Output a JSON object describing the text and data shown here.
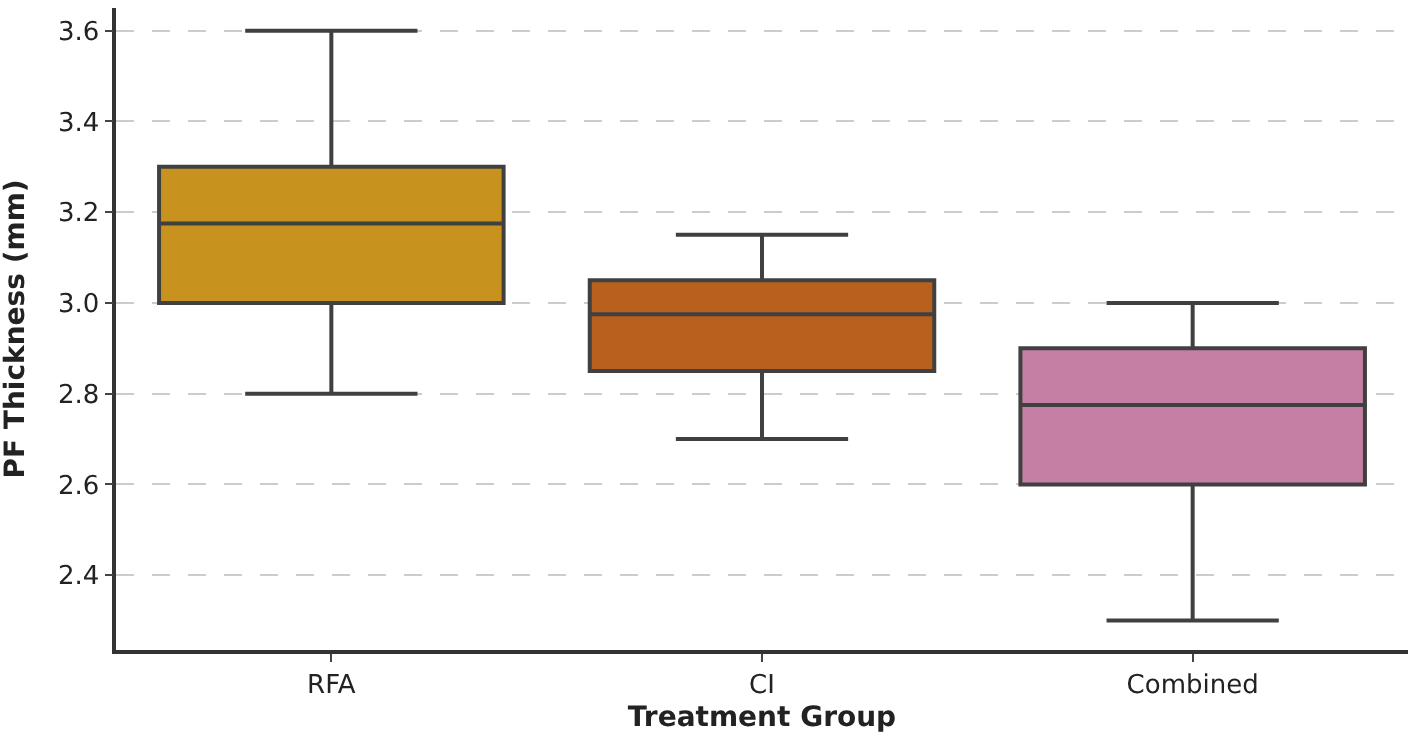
{
  "chart_data": {
    "type": "box",
    "xlabel": "Treatment Group",
    "ylabel": "PF Thickness (mm)",
    "categories": [
      "RFA",
      "CI",
      "Combined"
    ],
    "colors": [
      "#c8921f",
      "#b8601e",
      "#c47fa4"
    ],
    "boxes": [
      {
        "low": 2.8,
        "q1": 3.0,
        "median": 3.175,
        "q3": 3.3,
        "high": 3.6
      },
      {
        "low": 2.7,
        "q1": 2.85,
        "median": 2.975,
        "q3": 3.05,
        "high": 3.15
      },
      {
        "low": 2.3,
        "q1": 2.6,
        "median": 2.775,
        "q3": 2.9,
        "high": 3.0
      }
    ],
    "ylim": [
      2.235,
      3.65
    ],
    "yticks": [
      {
        "value": 2.4,
        "label": "2.4"
      },
      {
        "value": 2.6,
        "label": "2.6"
      },
      {
        "value": 2.8,
        "label": "2.8"
      },
      {
        "value": 3.0,
        "label": "3.0"
      },
      {
        "value": 3.2,
        "label": "3.2"
      },
      {
        "value": 3.4,
        "label": "3.4"
      },
      {
        "value": 3.6,
        "label": "3.6"
      }
    ],
    "grid": "y",
    "legend": false
  }
}
